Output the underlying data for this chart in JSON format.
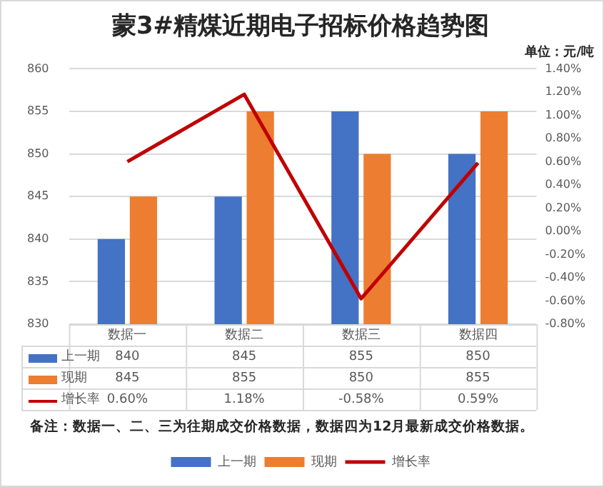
{
  "chart_data": {
    "type": "bar",
    "title": "蒙3#精煤近期电子招标价格趋势图",
    "subtitle": "单位：元/吨",
    "categories": [
      "数据一",
      "数据二",
      "数据三",
      "数据四"
    ],
    "series": [
      {
        "name": "上一期",
        "color": "#4472c4",
        "values": [
          840,
          845,
          855,
          850
        ],
        "value_labels": [
          "840",
          "845",
          "855",
          "850"
        ]
      },
      {
        "name": "现期",
        "color": "#ed7d31",
        "values": [
          845,
          855,
          850,
          855
        ],
        "value_labels": [
          "845",
          "855",
          "850",
          "855"
        ]
      },
      {
        "name": "增长率",
        "type": "line",
        "axis": "y2",
        "color": "#c00000",
        "values": [
          0.6,
          1.18,
          -0.58,
          0.59
        ],
        "value_labels": [
          "0.60%",
          "1.18%",
          "-0.58%",
          "0.59%"
        ]
      }
    ],
    "ylim": [
      830,
      860
    ],
    "yticks": [
      830,
      835,
      840,
      845,
      850,
      855,
      860
    ],
    "y2lim": [
      -0.8,
      1.4
    ],
    "y2ticks": [
      {
        "value": -0.8,
        "label": "-0.80%"
      },
      {
        "value": -0.6,
        "label": "-0.60%"
      },
      {
        "value": -0.4,
        "label": "-0.40%"
      },
      {
        "value": -0.2,
        "label": "-0.20%"
      },
      {
        "value": 0,
        "label": "0.00%"
      },
      {
        "value": 0.2,
        "label": "0.20%"
      },
      {
        "value": 0.4,
        "label": "0.40%"
      },
      {
        "value": 0.6,
        "label": "0.60%"
      },
      {
        "value": 0.8,
        "label": "0.80%"
      },
      {
        "value": 1.0,
        "label": "1.00%"
      },
      {
        "value": 1.2,
        "label": "1.20%"
      },
      {
        "value": 1.4,
        "label": "1.40%"
      }
    ],
    "grid": "y",
    "legend": "bottom",
    "marker": "none",
    "line_style": "solid",
    "annotations": [
      "备注：数据一、二、三为往期成交价格数据，数据四为12月最新成交价格数据。"
    ]
  }
}
